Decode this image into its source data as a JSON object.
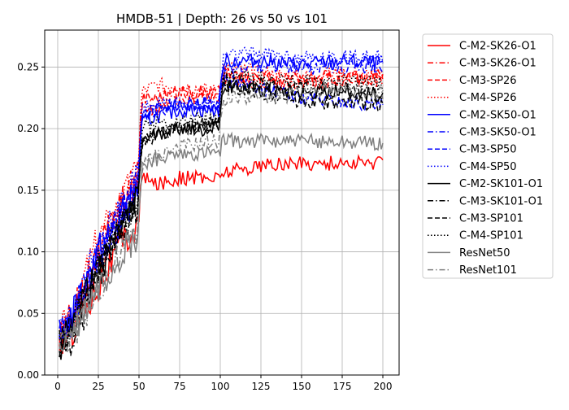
{
  "chart_data": {
    "type": "line",
    "title": "HMDB-51 | Depth: 26 vs 50 vs 101",
    "xlabel": "",
    "ylabel": "",
    "xlim": [
      -8,
      210
    ],
    "ylim": [
      0.0,
      0.28
    ],
    "xticks": [
      0,
      25,
      50,
      75,
      100,
      125,
      150,
      175,
      200
    ],
    "yticks": [
      0.0,
      0.05,
      0.1,
      0.15,
      0.2,
      0.25
    ],
    "xtick_labels": [
      "0",
      "25",
      "50",
      "75",
      "100",
      "125",
      "150",
      "175",
      "200"
    ],
    "ytick_labels": [
      "0.00",
      "0.05",
      "0.10",
      "0.15",
      "0.20",
      "0.25"
    ],
    "grid": true,
    "legend_position": "outside-right",
    "x_range": [
      1,
      200
    ],
    "series": [
      {
        "name": "C-M2-SK26-O1",
        "color": "#ff0000",
        "dash": "solid",
        "points": [
          [
            1,
            0.025
          ],
          [
            10,
            0.04
          ],
          [
            25,
            0.075
          ],
          [
            40,
            0.11
          ],
          [
            49,
            0.12
          ],
          [
            52,
            0.16
          ],
          [
            60,
            0.155
          ],
          [
            75,
            0.16
          ],
          [
            99,
            0.16
          ],
          [
            102,
            0.165
          ],
          [
            125,
            0.17
          ],
          [
            150,
            0.172
          ],
          [
            175,
            0.172
          ],
          [
            200,
            0.172
          ]
        ]
      },
      {
        "name": "C-M3-SK26-O1",
        "color": "#ff0000",
        "dash": "dashdot",
        "points": [
          [
            1,
            0.028
          ],
          [
            10,
            0.045
          ],
          [
            25,
            0.09
          ],
          [
            40,
            0.14
          ],
          [
            49,
            0.16
          ],
          [
            52,
            0.215
          ],
          [
            60,
            0.215
          ],
          [
            75,
            0.225
          ],
          [
            99,
            0.225
          ],
          [
            102,
            0.24
          ],
          [
            125,
            0.238
          ],
          [
            150,
            0.235
          ],
          [
            175,
            0.24
          ],
          [
            200,
            0.238
          ]
        ]
      },
      {
        "name": "C-M3-SP26",
        "color": "#ff0000",
        "dash": "dashed",
        "points": [
          [
            1,
            0.028
          ],
          [
            10,
            0.05
          ],
          [
            25,
            0.1
          ],
          [
            40,
            0.14
          ],
          [
            49,
            0.16
          ],
          [
            52,
            0.225
          ],
          [
            60,
            0.225
          ],
          [
            75,
            0.23
          ],
          [
            99,
            0.23
          ],
          [
            102,
            0.245
          ],
          [
            125,
            0.242
          ],
          [
            150,
            0.24
          ],
          [
            175,
            0.242
          ],
          [
            200,
            0.242
          ]
        ]
      },
      {
        "name": "C-M4-SP26",
        "color": "#ff0000",
        "dash": "dotted",
        "points": [
          [
            1,
            0.03
          ],
          [
            10,
            0.055
          ],
          [
            25,
            0.11
          ],
          [
            40,
            0.14
          ],
          [
            49,
            0.165
          ],
          [
            52,
            0.23
          ],
          [
            60,
            0.235
          ],
          [
            75,
            0.235
          ],
          [
            99,
            0.23
          ],
          [
            102,
            0.25
          ],
          [
            125,
            0.245
          ],
          [
            150,
            0.242
          ],
          [
            175,
            0.245
          ],
          [
            200,
            0.243
          ]
        ]
      },
      {
        "name": "C-M2-SK50-O1",
        "color": "#0000ff",
        "dash": "solid",
        "points": [
          [
            1,
            0.03
          ],
          [
            10,
            0.05
          ],
          [
            25,
            0.1
          ],
          [
            40,
            0.13
          ],
          [
            49,
            0.15
          ],
          [
            52,
            0.205
          ],
          [
            60,
            0.21
          ],
          [
            75,
            0.215
          ],
          [
            99,
            0.215
          ],
          [
            102,
            0.255
          ],
          [
            125,
            0.255
          ],
          [
            150,
            0.252
          ],
          [
            175,
            0.255
          ],
          [
            200,
            0.253
          ]
        ]
      },
      {
        "name": "C-M3-SK50-O1",
        "color": "#0000ff",
        "dash": "dashdot",
        "points": [
          [
            1,
            0.028
          ],
          [
            10,
            0.05
          ],
          [
            25,
            0.095
          ],
          [
            40,
            0.13
          ],
          [
            49,
            0.15
          ],
          [
            52,
            0.21
          ],
          [
            60,
            0.215
          ],
          [
            75,
            0.22
          ],
          [
            99,
            0.22
          ],
          [
            102,
            0.25
          ],
          [
            125,
            0.252
          ],
          [
            150,
            0.25
          ],
          [
            175,
            0.25
          ],
          [
            200,
            0.25
          ]
        ]
      },
      {
        "name": "C-M3-SP50",
        "color": "#0000ff",
        "dash": "dashed",
        "points": [
          [
            1,
            0.028
          ],
          [
            10,
            0.05
          ],
          [
            25,
            0.1
          ],
          [
            40,
            0.13
          ],
          [
            49,
            0.155
          ],
          [
            52,
            0.21
          ],
          [
            60,
            0.215
          ],
          [
            75,
            0.22
          ],
          [
            99,
            0.22
          ],
          [
            102,
            0.24
          ],
          [
            125,
            0.232
          ],
          [
            150,
            0.225
          ],
          [
            175,
            0.222
          ],
          [
            200,
            0.218
          ]
        ]
      },
      {
        "name": "C-M4-SP50",
        "color": "#0000ff",
        "dash": "dotted",
        "points": [
          [
            1,
            0.03
          ],
          [
            10,
            0.055
          ],
          [
            25,
            0.105
          ],
          [
            40,
            0.135
          ],
          [
            49,
            0.16
          ],
          [
            52,
            0.215
          ],
          [
            60,
            0.22
          ],
          [
            75,
            0.22
          ],
          [
            99,
            0.22
          ],
          [
            102,
            0.26
          ],
          [
            125,
            0.262
          ],
          [
            150,
            0.258
          ],
          [
            175,
            0.258
          ],
          [
            200,
            0.258
          ]
        ]
      },
      {
        "name": "C-M2-SK101-O1",
        "color": "#000000",
        "dash": "solid",
        "points": [
          [
            1,
            0.025
          ],
          [
            10,
            0.04
          ],
          [
            25,
            0.085
          ],
          [
            40,
            0.12
          ],
          [
            49,
            0.14
          ],
          [
            52,
            0.19
          ],
          [
            60,
            0.195
          ],
          [
            75,
            0.2
          ],
          [
            99,
            0.2
          ],
          [
            102,
            0.235
          ],
          [
            125,
            0.232
          ],
          [
            150,
            0.23
          ],
          [
            175,
            0.23
          ],
          [
            200,
            0.228
          ]
        ]
      },
      {
        "name": "C-M3-SK101-O1",
        "color": "#000000",
        "dash": "dashdot",
        "points": [
          [
            1,
            0.025
          ],
          [
            10,
            0.04
          ],
          [
            25,
            0.085
          ],
          [
            40,
            0.12
          ],
          [
            49,
            0.14
          ],
          [
            52,
            0.19
          ],
          [
            60,
            0.195
          ],
          [
            75,
            0.2
          ],
          [
            99,
            0.205
          ],
          [
            102,
            0.24
          ],
          [
            125,
            0.235
          ],
          [
            150,
            0.232
          ],
          [
            175,
            0.232
          ],
          [
            200,
            0.23
          ]
        ]
      },
      {
        "name": "C-M3-SP101",
        "color": "#000000",
        "dash": "dashed",
        "points": [
          [
            1,
            0.022
          ],
          [
            10,
            0.03
          ],
          [
            25,
            0.08
          ],
          [
            40,
            0.12
          ],
          [
            49,
            0.14
          ],
          [
            52,
            0.19
          ],
          [
            60,
            0.195
          ],
          [
            75,
            0.2
          ],
          [
            99,
            0.205
          ],
          [
            102,
            0.235
          ],
          [
            125,
            0.228
          ],
          [
            150,
            0.222
          ],
          [
            175,
            0.22
          ],
          [
            200,
            0.22
          ]
        ]
      },
      {
        "name": "C-M4-SP101",
        "color": "#000000",
        "dash": "dotted",
        "points": [
          [
            1,
            0.025
          ],
          [
            10,
            0.045
          ],
          [
            25,
            0.095
          ],
          [
            40,
            0.125
          ],
          [
            49,
            0.145
          ],
          [
            52,
            0.2
          ],
          [
            60,
            0.205
          ],
          [
            75,
            0.205
          ],
          [
            99,
            0.21
          ],
          [
            102,
            0.245
          ],
          [
            125,
            0.24
          ],
          [
            150,
            0.238
          ],
          [
            175,
            0.238
          ],
          [
            200,
            0.236
          ]
        ]
      },
      {
        "name": "ResNet50",
        "color": "#808080",
        "dash": "solid",
        "points": [
          [
            1,
            0.022
          ],
          [
            10,
            0.035
          ],
          [
            25,
            0.07
          ],
          [
            40,
            0.1
          ],
          [
            49,
            0.11
          ],
          [
            52,
            0.17
          ],
          [
            60,
            0.175
          ],
          [
            75,
            0.178
          ],
          [
            99,
            0.18
          ],
          [
            102,
            0.19
          ],
          [
            125,
            0.19
          ],
          [
            150,
            0.19
          ],
          [
            175,
            0.19
          ],
          [
            200,
            0.188
          ]
        ]
      },
      {
        "name": "ResNet101",
        "color": "#808080",
        "dash": "dashdot",
        "points": [
          [
            1,
            0.022
          ],
          [
            10,
            0.035
          ],
          [
            25,
            0.07
          ],
          [
            40,
            0.1
          ],
          [
            49,
            0.115
          ],
          [
            52,
            0.17
          ],
          [
            60,
            0.178
          ],
          [
            75,
            0.185
          ],
          [
            99,
            0.19
          ],
          [
            102,
            0.225
          ],
          [
            125,
            0.225
          ],
          [
            150,
            0.228
          ],
          [
            175,
            0.232
          ],
          [
            200,
            0.23
          ]
        ]
      }
    ]
  }
}
